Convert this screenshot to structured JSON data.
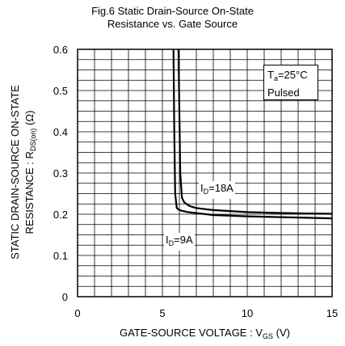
{
  "chart_data": {
    "type": "line",
    "title_line1": "Fig.6 Static Drain-Source On-State",
    "title_line2": "Resistance vs. Gate Source",
    "xlabel_main": "GATE-SOURCE VOLTAGE : V",
    "xlabel_sub": "GS",
    "xlabel_tail": " (V)",
    "ylabel_line1": "STATIC DRAIN-SOURCE ON-STATE",
    "ylabel_line2_main": "RESISTANCE : R",
    "ylabel_line2_sub": "DS(on)",
    "ylabel_line2_tail": " (Ω)",
    "xlim": [
      0,
      15
    ],
    "ylim": [
      0,
      0.6
    ],
    "x_ticks": [
      "0",
      "5",
      "10",
      "15"
    ],
    "y_ticks": [
      "0",
      "0.1",
      "0.2",
      "0.3",
      "0.4",
      "0.5",
      "0.6"
    ],
    "grid": true,
    "conditions": {
      "ta_main": "T",
      "ta_sub": "a",
      "ta_tail": "=25°C",
      "pulsed": "Pulsed"
    },
    "series": [
      {
        "name_main": "I",
        "name_sub": "D",
        "name_tail": "=18A",
        "x": [
          5.95,
          6.0,
          6.05,
          6.15,
          6.3,
          6.6,
          7.0,
          8.0,
          10.0,
          12.0,
          15.0
        ],
        "y": [
          0.6,
          0.45,
          0.3,
          0.24,
          0.228,
          0.22,
          0.215,
          0.21,
          0.205,
          0.203,
          0.201
        ]
      },
      {
        "name_main": "I",
        "name_sub": "D",
        "name_tail": "=9A",
        "x": [
          5.65,
          5.7,
          5.75,
          5.85,
          6.0,
          6.5,
          8.0,
          10.0,
          12.0,
          15.0
        ],
        "y": [
          0.6,
          0.4,
          0.25,
          0.215,
          0.21,
          0.205,
          0.198,
          0.195,
          0.193,
          0.19
        ]
      }
    ]
  }
}
